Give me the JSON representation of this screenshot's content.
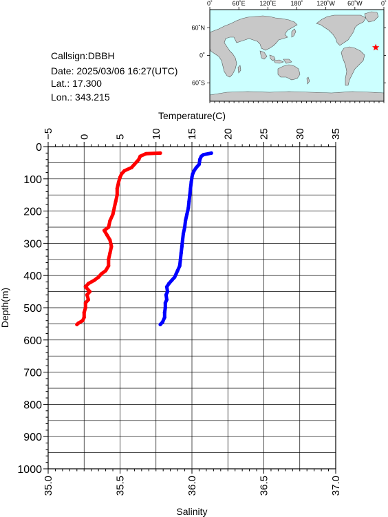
{
  "info": {
    "callsign": "Callsign:DBBH",
    "date": "Date:  2025/03/06 16:27(UTC)",
    "lat": "Lat.:  17.300",
    "lon": "Lon.:  343.215"
  },
  "map": {
    "lon_labels": [
      "0˚",
      "60˚E",
      "120˚E",
      "180˚",
      "120˚W",
      "60˚W",
      "0˚"
    ],
    "lat_labels": [
      "60˚N",
      "0˚",
      "60˚S"
    ],
    "station": {
      "lon": 343.215,
      "lat": 17.3
    },
    "colors": {
      "ocean": "#ccffff",
      "land": "#c8c8c8",
      "marker": "#ff0000"
    }
  },
  "chart_data": {
    "type": "line",
    "ylabel": "Depth(m)",
    "ylim": [
      0,
      1000
    ],
    "yticks": [
      "0",
      "100",
      "200",
      "300",
      "400",
      "500",
      "600",
      "700",
      "800",
      "900",
      "1000"
    ],
    "top_axis": {
      "label": "Temperature(C)",
      "range": [
        -5,
        35
      ],
      "ticks": [
        "−5",
        "0",
        "5",
        "10",
        "15",
        "20",
        "25",
        "30",
        "35"
      ]
    },
    "bottom_axis": {
      "label": "Salinity",
      "range": [
        35.0,
        37.0
      ],
      "ticks": [
        "35.0",
        "35.5",
        "36.0",
        "36.5",
        "37.0"
      ]
    },
    "grid": true,
    "series": [
      {
        "axis": "temperature",
        "color": "#0000ff",
        "points": [
          [
            17.7,
            20
          ],
          [
            16.6,
            25
          ],
          [
            16.3,
            30
          ],
          [
            16.1,
            40
          ],
          [
            16.0,
            55
          ],
          [
            15.6,
            65
          ],
          [
            15.3,
            75
          ],
          [
            15.1,
            85
          ],
          [
            15.0,
            95
          ],
          [
            14.9,
            110
          ],
          [
            14.8,
            130
          ],
          [
            14.7,
            150
          ],
          [
            14.6,
            170
          ],
          [
            14.5,
            190
          ],
          [
            14.3,
            210
          ],
          [
            14.1,
            230
          ],
          [
            14.0,
            250
          ],
          [
            13.8,
            270
          ],
          [
            13.7,
            290
          ],
          [
            13.6,
            310
          ],
          [
            13.5,
            330
          ],
          [
            13.4,
            350
          ],
          [
            13.3,
            370
          ],
          [
            13.0,
            385
          ],
          [
            12.8,
            395
          ],
          [
            12.6,
            405
          ],
          [
            12.2,
            415
          ],
          [
            11.8,
            425
          ],
          [
            11.5,
            435
          ],
          [
            11.6,
            450
          ],
          [
            11.4,
            460
          ],
          [
            11.5,
            475
          ],
          [
            11.3,
            485
          ],
          [
            11.3,
            500
          ],
          [
            11.2,
            515
          ],
          [
            11.2,
            530
          ],
          [
            10.9,
            545
          ],
          [
            10.6,
            552
          ]
        ]
      },
      {
        "axis": "salinity",
        "color": "#ff0000",
        "points": [
          [
            35.78,
            20
          ],
          [
            35.68,
            22
          ],
          [
            35.64,
            30
          ],
          [
            35.63,
            40
          ],
          [
            35.6,
            55
          ],
          [
            35.58,
            65
          ],
          [
            35.53,
            75
          ],
          [
            35.51,
            85
          ],
          [
            35.5,
            95
          ],
          [
            35.49,
            110
          ],
          [
            35.48,
            130
          ],
          [
            35.48,
            150
          ],
          [
            35.47,
            170
          ],
          [
            35.46,
            190
          ],
          [
            35.45,
            210
          ],
          [
            35.43,
            230
          ],
          [
            35.42,
            250
          ],
          [
            35.39,
            260
          ],
          [
            35.41,
            275
          ],
          [
            35.43,
            290
          ],
          [
            35.44,
            310
          ],
          [
            35.43,
            330
          ],
          [
            35.42,
            350
          ],
          [
            35.42,
            370
          ],
          [
            35.4,
            385
          ],
          [
            35.37,
            395
          ],
          [
            35.35,
            405
          ],
          [
            35.32,
            415
          ],
          [
            35.28,
            425
          ],
          [
            35.26,
            435
          ],
          [
            35.29,
            450
          ],
          [
            35.27,
            460
          ],
          [
            35.28,
            475
          ],
          [
            35.26,
            485
          ],
          [
            35.26,
            500
          ],
          [
            35.25,
            515
          ],
          [
            35.25,
            530
          ],
          [
            35.24,
            540
          ],
          [
            35.21,
            548
          ],
          [
            35.2,
            552
          ]
        ]
      }
    ]
  }
}
